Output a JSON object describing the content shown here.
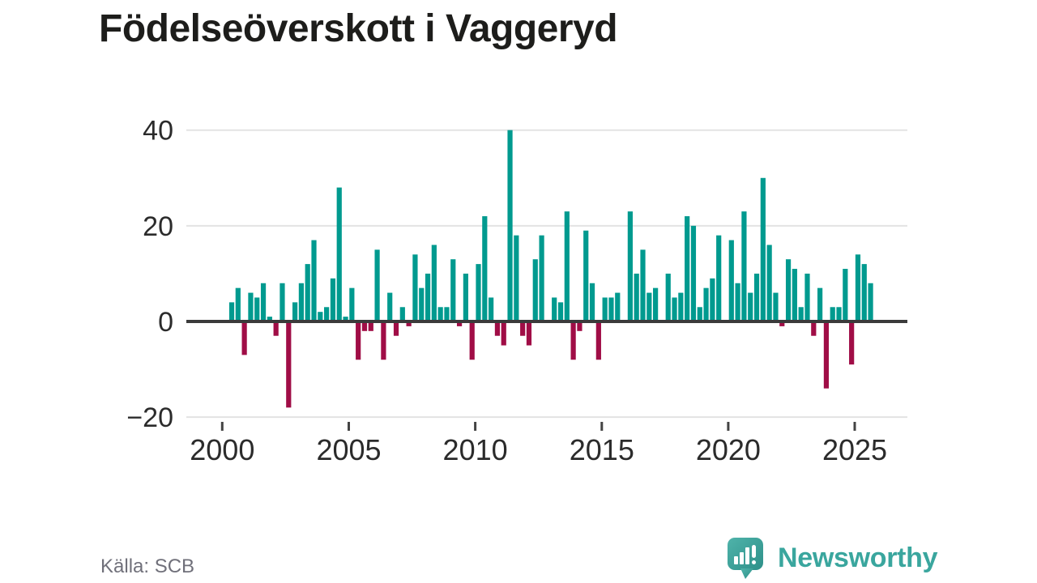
{
  "title": "Födelseöverskott i Vaggeryd",
  "source": {
    "label": "Källa: SCB"
  },
  "brand": {
    "name": "Newsworthy",
    "color": "#3aa69e"
  },
  "chart_data": {
    "type": "bar",
    "title": "Födelseöverskott i Vaggeryd",
    "frequency": "quarterly",
    "start_year": 2000,
    "start_quarter": 1,
    "values": [
      0,
      4,
      7,
      -7,
      6,
      5,
      8,
      1,
      -3,
      8,
      -18,
      4,
      8,
      12,
      17,
      2,
      3,
      9,
      28,
      1,
      7,
      -8,
      -2,
      -2,
      15,
      -8,
      6,
      -3,
      3,
      -1,
      14,
      7,
      10,
      16,
      3,
      3,
      13,
      -1,
      10,
      -8,
      12,
      22,
      5,
      -3,
      -5,
      40,
      18,
      -3,
      -5,
      13,
      18,
      0,
      5,
      4,
      23,
      -8,
      -2,
      19,
      8,
      -8,
      5,
      5,
      6,
      0,
      23,
      10,
      15,
      6,
      7,
      0,
      10,
      5,
      6,
      22,
      20,
      3,
      7,
      9,
      18,
      0,
      17,
      8,
      23,
      6,
      10,
      30,
      16,
      6,
      -1,
      13,
      11,
      3,
      10,
      -3,
      7,
      -14,
      3,
      3,
      11,
      -9,
      14,
      12,
      8
    ],
    "x_ticks": [
      2000,
      2005,
      2010,
      2015,
      2020,
      2025
    ],
    "x_tick_labels": [
      "2000",
      "2005",
      "2010",
      "2015",
      "2020",
      "2025"
    ],
    "y_ticks": [
      40,
      20,
      0,
      -20
    ],
    "y_tick_labels": [
      "40",
      "20",
      "0",
      "−20"
    ],
    "ylim": [
      -20,
      40
    ],
    "grid": "horizontal",
    "legend": "none",
    "positive_color": "#009a8f",
    "negative_color": "#a00d46",
    "axis_label_color": "#2b2b2b",
    "gridline_color": "#e3e3e3",
    "zeroline_color": "#3b3b3b"
  }
}
